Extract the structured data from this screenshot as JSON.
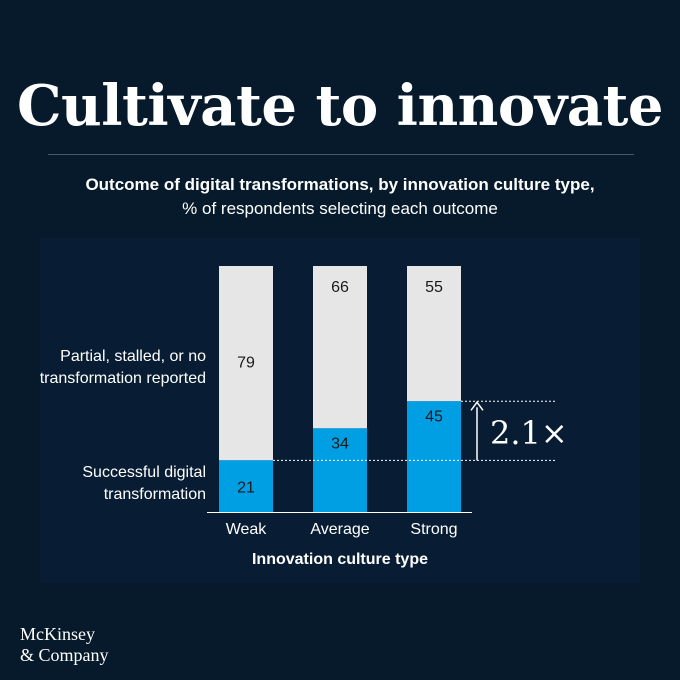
{
  "header": {
    "title": "Cultivate to innovate",
    "subtitle_bold": "Outcome of digital transformations, by innovation culture type,",
    "subtitle_regular": "% of respondents selecting each outcome"
  },
  "chart_data": {
    "type": "bar",
    "stacked": true,
    "categories": [
      "Weak",
      "Average",
      "Strong"
    ],
    "series": [
      {
        "name": "Successful digital transformation",
        "values": [
          21,
          34,
          45
        ],
        "color": "#009fe3"
      },
      {
        "name": "Partial, stalled, or no transformation reported",
        "values": [
          79,
          66,
          55
        ],
        "color": "#e6e6e6"
      }
    ],
    "xlabel": "Innovation culture type",
    "ylim": [
      0,
      100
    ],
    "annotation": "2.1×"
  },
  "legend": {
    "top_line1": "Partial, stalled, or no",
    "top_line2": "transformation reported",
    "bottom_line1": "Successful digital",
    "bottom_line2": "transformation"
  },
  "brand": {
    "line1": "McKinsey",
    "line2": "& Company"
  },
  "colors": {
    "background": "#061a2c",
    "success": "#009fe3",
    "other": "#e6e6e6"
  }
}
